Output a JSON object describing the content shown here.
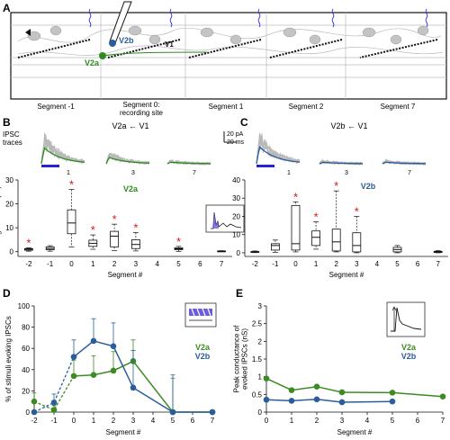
{
  "panels": {
    "A": {
      "letter": "A",
      "segment_labels": [
        "Segment -1",
        "Segment 0:\nrecording site",
        "Segment 1",
        "Segment 2",
        "Segment 7"
      ],
      "labels": {
        "v2b": "V2b",
        "v1": "V1",
        "v2a": "V2a"
      }
    },
    "B": {
      "letter": "B",
      "trace_label": "IPSC\ntraces",
      "scalebar": [
        "20 pA",
        "20 ms"
      ],
      "trace_title": "V2a ← V1",
      "trace_segments": [
        "1",
        "3",
        "7"
      ]
    },
    "C": {
      "letter": "C",
      "trace_title": "V2b ← V1",
      "trace_segments": [
        "1",
        "3",
        "7"
      ]
    },
    "D": {
      "letter": "D"
    },
    "E": {
      "letter": "E"
    }
  },
  "chart_data": [
    {
      "id": "B-box",
      "type": "box",
      "series_label": "V2a",
      "color": "#2e8b22",
      "ylabel": "Charge transfer (fC)",
      "xlabel": "Segment #",
      "ylim": [
        -2,
        30
      ],
      "yticks": [
        0,
        10,
        20,
        30
      ],
      "x_ticks": [
        -2,
        -1,
        0,
        1,
        2,
        3,
        4,
        5,
        6,
        7
      ],
      "boxes": [
        {
          "x": -2,
          "min": 0.2,
          "q1": 0.6,
          "med": 1.0,
          "q3": 1.3,
          "max": 1.6,
          "star": true
        },
        {
          "x": -1,
          "min": 0.2,
          "q1": 0.8,
          "med": 1.3,
          "q3": 2.0,
          "max": 2.5,
          "star": false
        },
        {
          "x": 0,
          "min": 2.0,
          "q1": 7.5,
          "med": 12.0,
          "q3": 17.5,
          "max": 26.0,
          "star": true
        },
        {
          "x": 1,
          "min": 1.0,
          "q1": 2.2,
          "med": 3.5,
          "q3": 4.8,
          "max": 7.0,
          "star": true
        },
        {
          "x": 2,
          "min": 0.5,
          "q1": 2.0,
          "med": 6.5,
          "q3": 8.5,
          "max": 11.5,
          "star": true
        },
        {
          "x": 3,
          "min": 0.3,
          "q1": 1.3,
          "med": 3.0,
          "q3": 5.0,
          "max": 8.0,
          "star": true
        },
        {
          "x": 5,
          "min": 0.1,
          "q1": 0.8,
          "med": 1.2,
          "q3": 1.6,
          "max": 2.2,
          "star": true
        },
        {
          "x": 7,
          "min": 0.0,
          "q1": 0.1,
          "med": 0.2,
          "q3": 0.3,
          "max": 0.4,
          "star": false
        }
      ]
    },
    {
      "id": "C-box",
      "type": "box",
      "series_label": "V2b",
      "color": "#2a5d9b",
      "ylabel": "",
      "xlabel": "Segment #",
      "ylim": [
        -2,
        40
      ],
      "yticks": [
        0,
        10,
        20,
        30,
        40
      ],
      "x_ticks": [
        -2,
        -1,
        0,
        1,
        2,
        3,
        4,
        5,
        6,
        7
      ],
      "boxes": [
        {
          "x": -2,
          "min": 0.1,
          "q1": 0.3,
          "med": 0.5,
          "q3": 0.7,
          "max": 1.0,
          "star": false
        },
        {
          "x": -1,
          "min": 0.2,
          "q1": 1.5,
          "med": 4.0,
          "q3": 5.0,
          "max": 7.0,
          "star": false
        },
        {
          "x": 0,
          "min": 0.5,
          "q1": 1.5,
          "med": 5.0,
          "q3": 26.0,
          "max": 28.0,
          "star": true
        },
        {
          "x": 1,
          "min": 2.0,
          "q1": 4.0,
          "med": 8.5,
          "q3": 12.0,
          "max": 17.0,
          "star": true
        },
        {
          "x": 2,
          "min": 0.5,
          "q1": 1.0,
          "med": 6.0,
          "q3": 13.0,
          "max": 34.0,
          "star": true
        },
        {
          "x": 3,
          "min": 0.0,
          "q1": 0.5,
          "med": 4.0,
          "q3": 11.0,
          "max": 20.0,
          "star": true
        },
        {
          "x": 5,
          "min": 0.0,
          "q1": 0.5,
          "med": 1.8,
          "q3": 3.0,
          "max": 4.0,
          "star": false
        },
        {
          "x": 7,
          "min": 0.0,
          "q1": 0.2,
          "med": 0.5,
          "q3": 0.8,
          "max": 1.2,
          "star": false
        }
      ]
    },
    {
      "id": "D-line",
      "type": "line",
      "ylabel": "% of stimuli evoking IPSCs",
      "xlabel": "Segment #",
      "ylim": [
        0,
        100
      ],
      "yticks": [
        0,
        20,
        40,
        60,
        80,
        100
      ],
      "xlim": [
        -2,
        7
      ],
      "xticks": [
        -2,
        -1,
        0,
        1,
        2,
        3,
        4,
        5,
        6,
        7
      ],
      "series": [
        {
          "name": "V2a",
          "color": "#3d8a24",
          "x": [
            -2,
            -1,
            0,
            1,
            2,
            3,
            5,
            7
          ],
          "y": [
            10,
            2,
            34,
            35,
            39,
            48,
            0,
            0
          ],
          "err": [
            8,
            4,
            15,
            18,
            18,
            20,
            32,
            0
          ]
        },
        {
          "name": "V2b",
          "color": "#2a5d9b",
          "x": [
            -2,
            -1,
            0,
            1,
            2,
            3,
            5,
            7
          ],
          "y": [
            0,
            9,
            52,
            67,
            62,
            23,
            0,
            0
          ],
          "err": [
            0,
            8,
            16,
            21,
            22,
            35,
            35,
            0
          ]
        }
      ],
      "dashed_x": [
        -1,
        0
      ]
    },
    {
      "id": "E-line",
      "type": "line",
      "ylabel": "Peak conductance of\nevoked IPSCs (nS)",
      "xlabel": "Segment #",
      "ylim": [
        0,
        3
      ],
      "yticks": [
        0,
        0.5,
        1,
        1.5,
        2,
        2.5,
        3
      ],
      "xlim": [
        0,
        7
      ],
      "xticks": [
        0,
        1,
        2,
        3,
        4,
        5,
        6,
        7
      ],
      "series": [
        {
          "name": "V2a",
          "color": "#3d8a24",
          "x": [
            0,
            1,
            2,
            3,
            5,
            7
          ],
          "y": [
            0.95,
            0.62,
            0.72,
            0.56,
            0.55,
            0.44
          ]
        },
        {
          "name": "V2b",
          "color": "#2a5d9b",
          "x": [
            0,
            1,
            2,
            3,
            5
          ],
          "y": [
            0.35,
            0.32,
            0.36,
            0.28,
            0.3
          ]
        }
      ]
    }
  ]
}
